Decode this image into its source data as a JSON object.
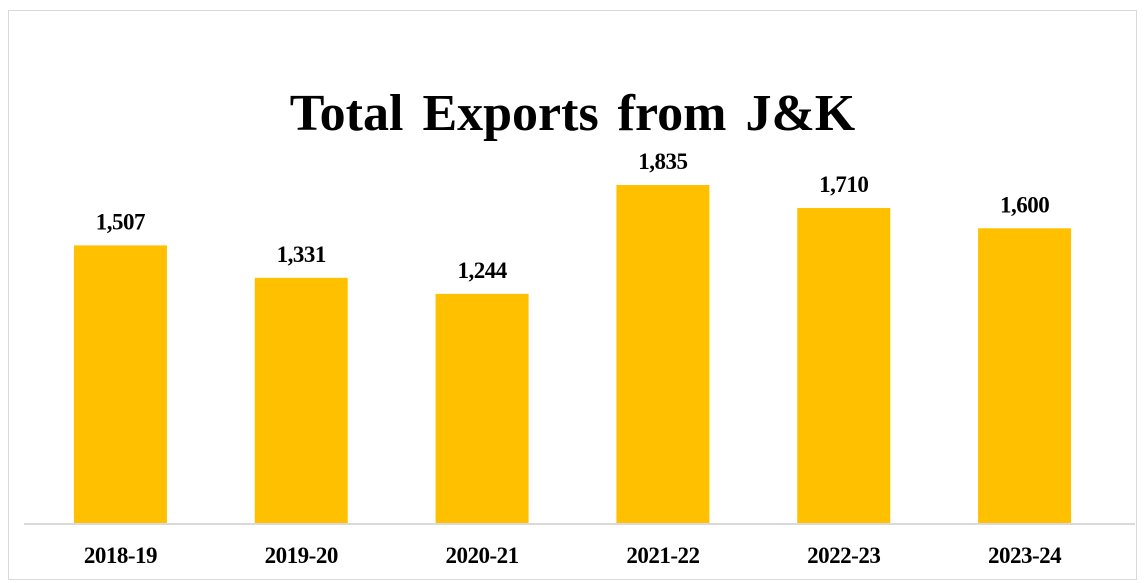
{
  "chart_data": {
    "type": "bar",
    "title": "Total Exports from J&K",
    "xlabel": "",
    "ylabel": "",
    "categories": [
      "2018-19",
      "2019-20",
      "2020-21",
      "2021-22",
      "2022-23",
      "2023-24"
    ],
    "values": [
      1507,
      1331,
      1244,
      1835,
      1710,
      1600
    ],
    "data_labels": [
      "1,507",
      "1,331",
      "1,244",
      "1,835",
      "1,710",
      "1,600"
    ],
    "ylim": [
      0,
      1835
    ],
    "grid": false,
    "legend": "none",
    "colors": {
      "bar": "#FFC000",
      "axis": "#d9d9d9",
      "text": "#000000"
    }
  }
}
